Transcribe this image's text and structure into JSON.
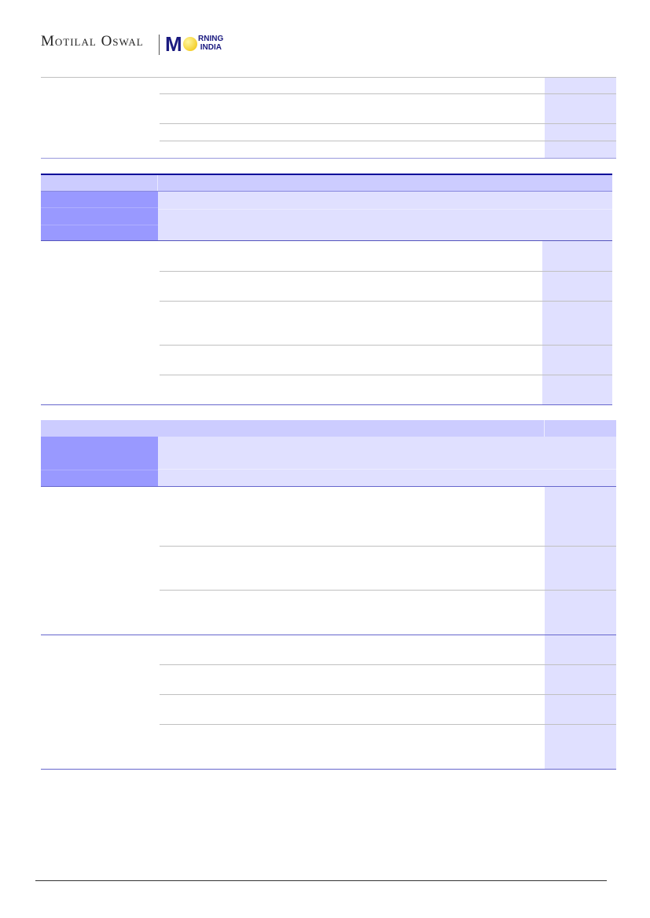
{
  "header": {
    "logo_left": "Motilal Oswal",
    "logo_right_top": "RNING",
    "logo_right_bottom": "INDIA",
    "logo_m": "M"
  },
  "colors": {
    "header_fill": "#ccccff",
    "label_fill": "#9999ff",
    "cell_fill": "#e0e0ff",
    "rule": "#000099"
  }
}
